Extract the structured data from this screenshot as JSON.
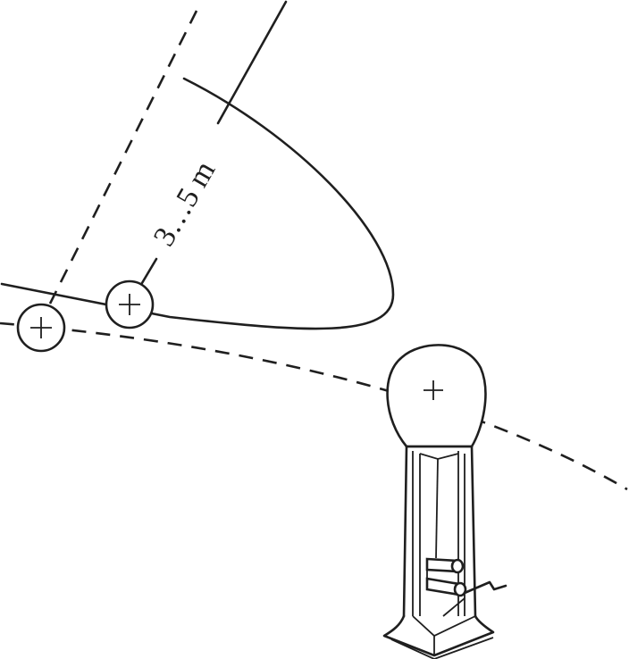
{
  "diagram": {
    "distance_label": "3…5 m",
    "ink_color": "#1f1f1f",
    "background_color": "#ffffff"
  }
}
